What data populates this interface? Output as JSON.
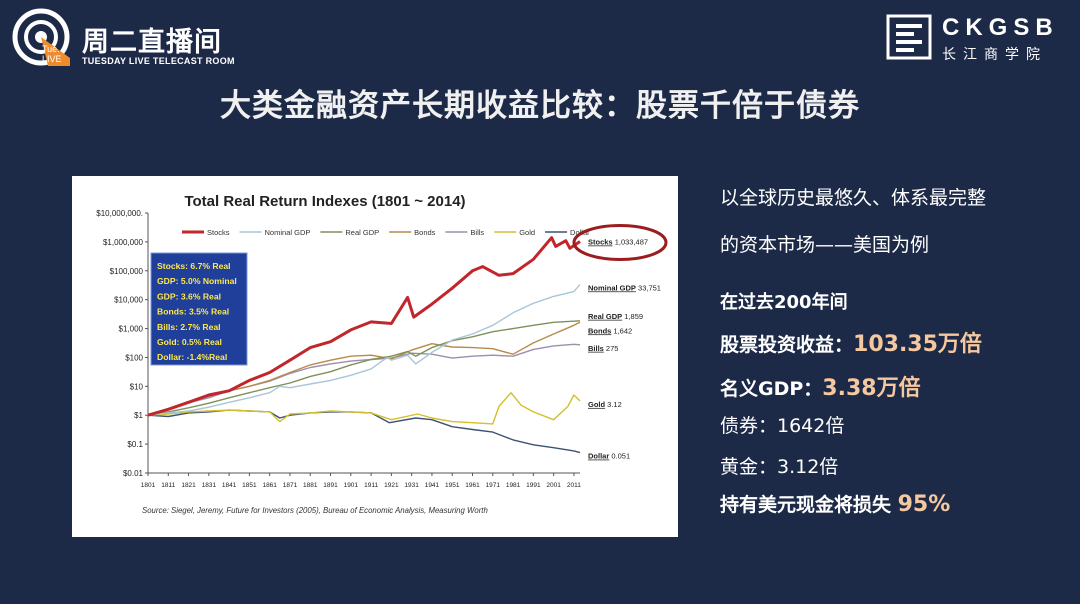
{
  "header": {
    "logo_title": "周二直播间",
    "logo_subtitle": "TUESDAY LIVE TELECAST ROOM",
    "logo_badge_1": "Tue.",
    "logo_badge_2": "LIVE",
    "brand_name": "CKGSB",
    "brand_cn": "长江商学院"
  },
  "page_title": "大类金融资产长期收益比较：股票千倍于债券",
  "right_panel": {
    "intro_line1": "以全球历史最悠久、体系最完整",
    "intro_line2": "的资本市场——美国为例",
    "period": "在过去200年间",
    "stocks_label": "股票投资收益：",
    "stocks_value": "103.35万倍",
    "gdp_label": "名义GDP：",
    "gdp_value": "3.38万倍",
    "bonds_text": "债券：1642倍",
    "gold_text": "黄金：3.12倍",
    "dollar_label": "持有美元现金将损失 ",
    "dollar_value": "95%"
  },
  "colors": {
    "background": "#1d2a47",
    "accent_value": "#f6c89f",
    "stocks": "#c0262b",
    "nominal_gdp": "#a9c6d8",
    "real_gdp": "#7d9159",
    "bonds": "#b88a4a",
    "bills": "#9c8fae",
    "gold": "#d4c02a",
    "dollar": "#3e5275",
    "stats_box": "#1f3f9a",
    "stats_text": "#ffe94a",
    "circle": "#9b1d20"
  },
  "chart_data": {
    "type": "line",
    "title": "Total Real Return Indexes (1801 ~ 2014)",
    "y_scale": "log",
    "ylim": [
      0.01,
      10000000
    ],
    "y_ticks": [
      0.01,
      0.1,
      1,
      10,
      100,
      1000,
      10000,
      100000,
      1000000,
      10000000
    ],
    "y_tick_labels": [
      "$0.01",
      "$0.1",
      "$1",
      "$10",
      "$100",
      "$1,000",
      "$10,000",
      "$100,000",
      "$1,000,000",
      "$10,000,000."
    ],
    "xlim": [
      1801,
      2014
    ],
    "x_ticks": [
      1801,
      1811,
      1821,
      1831,
      1841,
      1851,
      1861,
      1871,
      1881,
      1891,
      1901,
      1911,
      1921,
      1931,
      1941,
      1951,
      1961,
      1971,
      1981,
      1991,
      2001,
      2011
    ],
    "legend": [
      "Stocks",
      "Nominal GDP",
      "Real GDP",
      "Bonds",
      "Bills",
      "Gold",
      "Dollar"
    ],
    "legend_position": "top",
    "grid": false,
    "series": [
      {
        "name": "Stocks",
        "end_label": "Stocks 1,033,487",
        "final": 1033487,
        "points": [
          [
            1801,
            1
          ],
          [
            1811,
            1.6
          ],
          [
            1821,
            2.8
          ],
          [
            1831,
            5
          ],
          [
            1841,
            7
          ],
          [
            1851,
            16
          ],
          [
            1861,
            30
          ],
          [
            1871,
            80
          ],
          [
            1881,
            220
          ],
          [
            1891,
            350
          ],
          [
            1901,
            900
          ],
          [
            1911,
            1700
          ],
          [
            1921,
            1500
          ],
          [
            1929,
            12000
          ],
          [
            1932,
            2500
          ],
          [
            1941,
            7000
          ],
          [
            1951,
            25000
          ],
          [
            1961,
            100000
          ],
          [
            1966,
            140000
          ],
          [
            1974,
            70000
          ],
          [
            1981,
            80000
          ],
          [
            1991,
            250000
          ],
          [
            2000,
            1400000
          ],
          [
            2002,
            700000
          ],
          [
            2007,
            1100000
          ],
          [
            2009,
            600000
          ],
          [
            2014,
            1033487
          ]
        ]
      },
      {
        "name": "Nominal GDP",
        "end_label": "Nominal GDP 33,751",
        "final": 33751,
        "points": [
          [
            1801,
            1
          ],
          [
            1811,
            1.2
          ],
          [
            1821,
            1.4
          ],
          [
            1831,
            1.9
          ],
          [
            1841,
            2.8
          ],
          [
            1851,
            4
          ],
          [
            1861,
            6
          ],
          [
            1866,
            10
          ],
          [
            1871,
            9
          ],
          [
            1881,
            12
          ],
          [
            1891,
            16
          ],
          [
            1901,
            24
          ],
          [
            1911,
            40
          ],
          [
            1919,
            100
          ],
          [
            1921,
            80
          ],
          [
            1929,
            120
          ],
          [
            1933,
            60
          ],
          [
            1941,
            150
          ],
          [
            1951,
            400
          ],
          [
            1961,
            650
          ],
          [
            1971,
            1300
          ],
          [
            1981,
            3500
          ],
          [
            1991,
            7500
          ],
          [
            2001,
            13000
          ],
          [
            2011,
            19000
          ],
          [
            2014,
            33751
          ]
        ]
      },
      {
        "name": "Real GDP",
        "end_label": "Real GDP 1,859",
        "final": 1859,
        "points": [
          [
            1801,
            1
          ],
          [
            1811,
            1.3
          ],
          [
            1821,
            1.8
          ],
          [
            1831,
            2.6
          ],
          [
            1841,
            4
          ],
          [
            1851,
            6
          ],
          [
            1861,
            9
          ],
          [
            1871,
            13
          ],
          [
            1881,
            22
          ],
          [
            1891,
            32
          ],
          [
            1901,
            55
          ],
          [
            1911,
            85
          ],
          [
            1921,
            110
          ],
          [
            1929,
            160
          ],
          [
            1933,
            110
          ],
          [
            1941,
            220
          ],
          [
            1951,
            380
          ],
          [
            1961,
            520
          ],
          [
            1971,
            780
          ],
          [
            1981,
            1000
          ],
          [
            1991,
            1300
          ],
          [
            2001,
            1650
          ],
          [
            2014,
            1859
          ]
        ]
      },
      {
        "name": "Bonds",
        "end_label": "Bonds 1,642",
        "final": 1642,
        "points": [
          [
            1801,
            1
          ],
          [
            1811,
            1.7
          ],
          [
            1821,
            3
          ],
          [
            1831,
            4.5
          ],
          [
            1841,
            7
          ],
          [
            1851,
            10
          ],
          [
            1861,
            16
          ],
          [
            1871,
            30
          ],
          [
            1881,
            55
          ],
          [
            1891,
            80
          ],
          [
            1901,
            110
          ],
          [
            1911,
            120
          ],
          [
            1921,
            90
          ],
          [
            1931,
            180
          ],
          [
            1941,
            300
          ],
          [
            1951,
            230
          ],
          [
            1961,
            220
          ],
          [
            1971,
            200
          ],
          [
            1981,
            130
          ],
          [
            1991,
            320
          ],
          [
            2001,
            650
          ],
          [
            2011,
            1300
          ],
          [
            2014,
            1642
          ]
        ]
      },
      {
        "name": "Bills",
        "end_label": "Bills 275",
        "final": 275,
        "points": [
          [
            1801,
            1
          ],
          [
            1811,
            1.6
          ],
          [
            1821,
            2.7
          ],
          [
            1831,
            4
          ],
          [
            1841,
            7
          ],
          [
            1851,
            10
          ],
          [
            1861,
            15
          ],
          [
            1871,
            28
          ],
          [
            1881,
            45
          ],
          [
            1891,
            60
          ],
          [
            1901,
            75
          ],
          [
            1911,
            85
          ],
          [
            1921,
            95
          ],
          [
            1931,
            140
          ],
          [
            1941,
            130
          ],
          [
            1951,
            95
          ],
          [
            1961,
            110
          ],
          [
            1971,
            120
          ],
          [
            1981,
            110
          ],
          [
            1991,
            190
          ],
          [
            2001,
            250
          ],
          [
            2011,
            285
          ],
          [
            2014,
            275
          ]
        ]
      },
      {
        "name": "Gold",
        "end_label": "Gold 3.12",
        "final": 3.12,
        "points": [
          [
            1801,
            1
          ],
          [
            1811,
            1.1
          ],
          [
            1821,
            1.3
          ],
          [
            1831,
            1.4
          ],
          [
            1841,
            1.5
          ],
          [
            1851,
            1.4
          ],
          [
            1861,
            1.3
          ],
          [
            1866,
            0.6
          ],
          [
            1871,
            1.1
          ],
          [
            1881,
            1.2
          ],
          [
            1891,
            1.4
          ],
          [
            1901,
            1.3
          ],
          [
            1911,
            1.2
          ],
          [
            1921,
            0.7
          ],
          [
            1934,
            1.1
          ],
          [
            1941,
            0.8
          ],
          [
            1951,
            0.6
          ],
          [
            1961,
            0.55
          ],
          [
            1971,
            0.5
          ],
          [
            1974,
            2
          ],
          [
            1980,
            6
          ],
          [
            1985,
            2.2
          ],
          [
            1991,
            1.3
          ],
          [
            2001,
            0.7
          ],
          [
            2008,
            2
          ],
          [
            2011,
            5
          ],
          [
            2014,
            3.12
          ]
        ]
      },
      {
        "name": "Dollar",
        "end_label": "Dollar 0.051",
        "final": 0.051,
        "points": [
          [
            1801,
            1
          ],
          [
            1811,
            0.9
          ],
          [
            1821,
            1.2
          ],
          [
            1831,
            1.3
          ],
          [
            1841,
            1.5
          ],
          [
            1851,
            1.4
          ],
          [
            1861,
            1.3
          ],
          [
            1866,
            0.8
          ],
          [
            1871,
            1
          ],
          [
            1881,
            1.2
          ],
          [
            1891,
            1.3
          ],
          [
            1901,
            1.3
          ],
          [
            1911,
            1.2
          ],
          [
            1920,
            0.55
          ],
          [
            1933,
            0.8
          ],
          [
            1941,
            0.7
          ],
          [
            1951,
            0.4
          ],
          [
            1961,
            0.32
          ],
          [
            1971,
            0.26
          ],
          [
            1981,
            0.14
          ],
          [
            1991,
            0.095
          ],
          [
            2001,
            0.075
          ],
          [
            2011,
            0.058
          ],
          [
            2014,
            0.051
          ]
        ]
      }
    ],
    "stats_box": [
      "Stocks: 6.7% Real",
      "GDP: 5.0% Nominal",
      "GDP: 3.6% Real",
      "Bonds: 3.5% Real",
      "Bills:    2.7% Real",
      "Gold:   0.5% Real",
      "Dollar: -1.4%Real"
    ],
    "source": "Source: Siegel, Jeremy, Future for Investors (2005), Bureau of Economic Analysis, Measuring Worth"
  }
}
